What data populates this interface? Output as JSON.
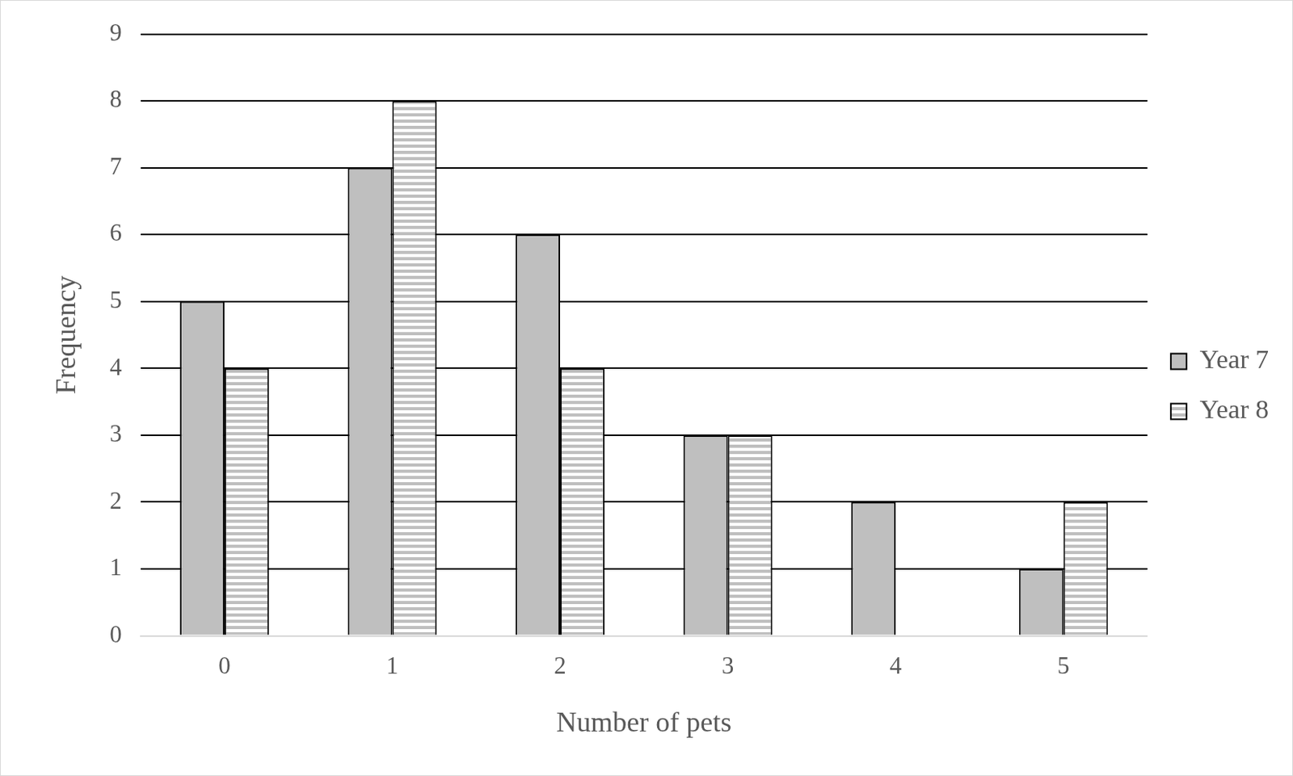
{
  "chart_data": {
    "type": "bar",
    "x_label": "Number of pets",
    "y_label": "Frequency",
    "categories": [
      "0",
      "1",
      "2",
      "3",
      "4",
      "5"
    ],
    "series": [
      {
        "name": "Year 7",
        "color": "#bfbfbf",
        "marker": "solid",
        "values": [
          5,
          7,
          6,
          3,
          2,
          1
        ]
      },
      {
        "name": "Year 8",
        "color": "#bfbfbf",
        "marker": "stripes",
        "values": [
          4,
          8,
          4,
          3,
          0,
          2
        ]
      }
    ],
    "ylim": [
      0,
      9
    ],
    "yticks": [
      0,
      1,
      2,
      3,
      4,
      5,
      6,
      7,
      8,
      9
    ],
    "grid": true,
    "legend": "right"
  }
}
